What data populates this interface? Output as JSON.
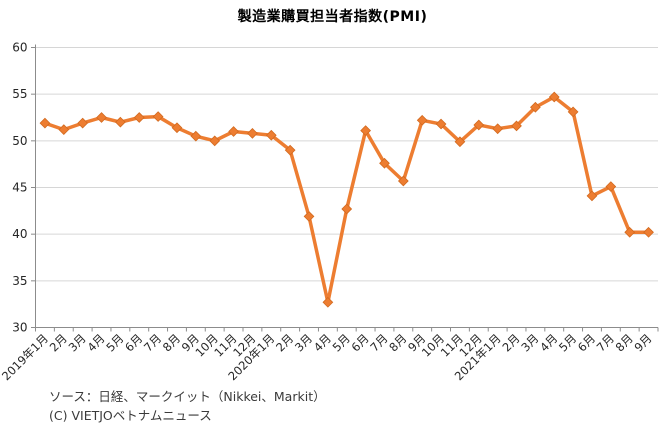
{
  "title": "製造業購買担当者指数(PMI)",
  "footer": {
    "source_line": "ソース：日経、マークイット（Nikkei、Markit）",
    "copyright_line": "(C) VIETJOベトナムニュース"
  },
  "colors": {
    "line": "#ED7D31",
    "marker_edge": "#D2691E",
    "grid": "#D6D6D6",
    "axis": "#8C8C8C",
    "tick_text": "#262626"
  },
  "chart_data": {
    "type": "line",
    "title": "製造業購買担当者指数(PMI)",
    "categories": [
      "2019年1月",
      "2月",
      "3月",
      "4月",
      "5月",
      "6月",
      "7月",
      "8月",
      "9月",
      "10月",
      "11月",
      "12月",
      "2020年1月",
      "2月",
      "3月",
      "4月",
      "5月",
      "6月",
      "7月",
      "8月",
      "9月",
      "10月",
      "11月",
      "12月",
      "2021年1月",
      "2月",
      "3月",
      "4月",
      "5月",
      "6月",
      "7月",
      "8月",
      "9月"
    ],
    "series": [
      {
        "name": "PMI",
        "values": [
          51.9,
          51.2,
          51.9,
          52.5,
          52.0,
          52.5,
          52.6,
          51.4,
          50.5,
          50.0,
          51.0,
          50.8,
          50.6,
          49.0,
          41.9,
          32.7,
          42.7,
          51.1,
          47.6,
          45.7,
          52.2,
          51.8,
          49.9,
          51.7,
          51.3,
          51.6,
          53.6,
          54.7,
          53.1,
          44.1,
          45.1,
          40.2,
          40.2
        ]
      }
    ],
    "xlabel": "",
    "ylabel": "",
    "ylim": [
      30,
      60
    ],
    "yticks": [
      30,
      35,
      40,
      45,
      50,
      55,
      60
    ],
    "grid": true,
    "legend": false,
    "marker": "diamond",
    "x_label_rotation": -45
  }
}
